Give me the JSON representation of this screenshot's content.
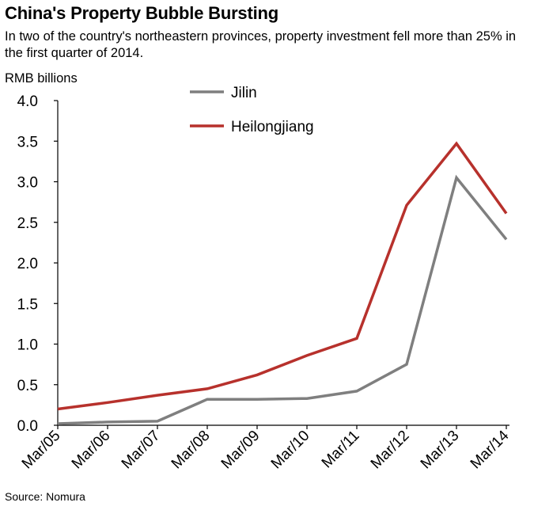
{
  "header": {
    "title": "China's Property Bubble Bursting",
    "subtitle": "In two of the country's northeastern provinces, property investment fell more than 25% in the first quarter of 2014.",
    "unit_label": "RMB billions"
  },
  "footer": {
    "source": "Source: Nomura"
  },
  "chart_data": {
    "type": "line",
    "title": "China's Property Bubble Bursting",
    "ylabel": "RMB billions",
    "xlabel": "",
    "ylim": [
      0,
      4.0
    ],
    "yticks": [
      "0.0",
      "0.5",
      "1.0",
      "1.5",
      "2.0",
      "2.5",
      "3.0",
      "3.5",
      "4.0"
    ],
    "categories": [
      "Mar/05",
      "Mar/06",
      "Mar/07",
      "Mar/08",
      "Mar/09",
      "Mar/10",
      "Mar/11",
      "Mar/12",
      "Mar/13",
      "Mar/14"
    ],
    "grid": false,
    "legend": "top-center",
    "series": [
      {
        "name": "Jilin",
        "color": "#7f7f7f",
        "values": [
          0.02,
          0.04,
          0.05,
          0.32,
          0.32,
          0.33,
          0.42,
          0.75,
          3.05,
          2.29
        ]
      },
      {
        "name": "Heilongjiang",
        "color": "#b7312c",
        "values": [
          0.2,
          0.28,
          0.37,
          0.45,
          0.62,
          0.86,
          1.07,
          2.71,
          3.47,
          2.61
        ]
      }
    ]
  }
}
